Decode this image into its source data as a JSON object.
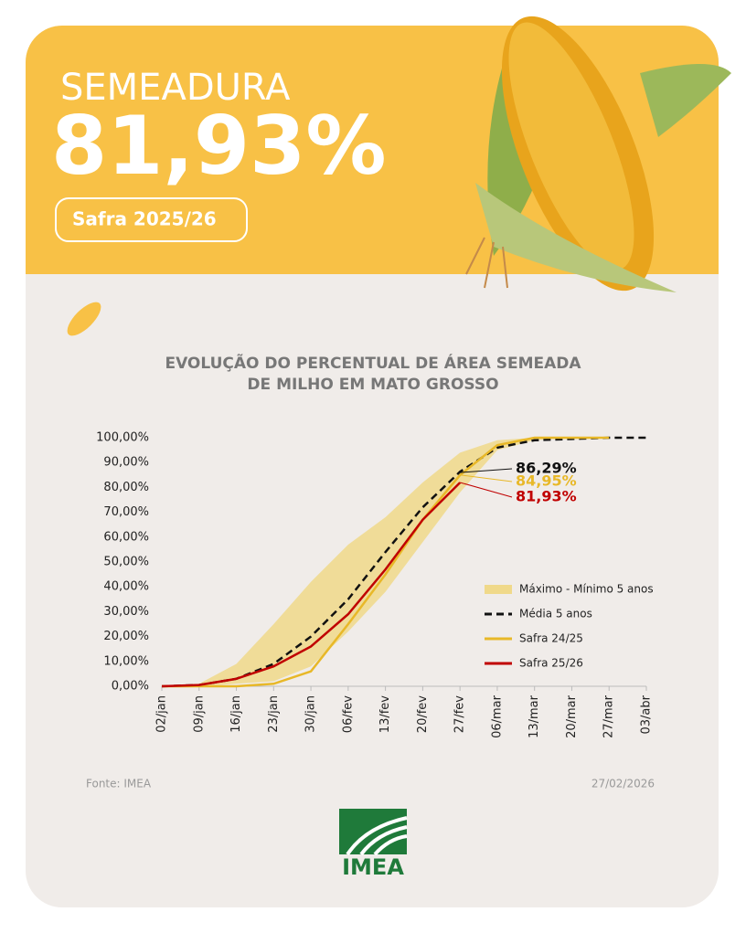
{
  "header": {
    "title": "SEMEADURA",
    "value": "81,93%",
    "badge": "Safra 2025/26"
  },
  "chart_data": {
    "type": "line",
    "title": [
      "EVOLUÇÃO DO PERCENTUAL DE ÁREA SEMEADA",
      "DE MILHO EM MATO GROSSO"
    ],
    "categories": [
      "02/jan",
      "09/jan",
      "16/jan",
      "23/jan",
      "30/jan",
      "06/fev",
      "13/fev",
      "20/fev",
      "27/fev",
      "06/mar",
      "13/mar",
      "20/mar",
      "27/mar",
      "03/abr"
    ],
    "ylim": [
      0,
      100
    ],
    "yticks": [
      {
        "value": 0,
        "label": "0,00%"
      },
      {
        "value": 10,
        "label": "10,00%"
      },
      {
        "value": 20,
        "label": "20,00%"
      },
      {
        "value": 30,
        "label": "30,00%"
      },
      {
        "value": 40,
        "label": "40,00%"
      },
      {
        "value": 50,
        "label": "50,00%"
      },
      {
        "value": 60,
        "label": "60,00%"
      },
      {
        "value": 70,
        "label": "70,00%"
      },
      {
        "value": 80,
        "label": "80,00%"
      },
      {
        "value": 90,
        "label": "90,00%"
      },
      {
        "value": 100,
        "label": "100,00%"
      }
    ],
    "band": {
      "name": "Máximo - Mínimo 5 anos",
      "color": "#f0d98a",
      "upper": [
        0,
        1,
        9,
        25,
        42,
        57,
        68,
        82,
        94,
        99,
        100,
        100,
        100,
        null
      ],
      "lower": [
        0,
        0,
        1,
        2,
        8,
        22,
        38,
        58,
        78,
        95,
        99,
        100,
        100,
        null
      ]
    },
    "series": [
      {
        "name": "Média 5 anos",
        "color": "#111111",
        "dash": true,
        "values": [
          0,
          0.5,
          3,
          9,
          20,
          35,
          54,
          72,
          86.29,
          96,
          99,
          99.5,
          100,
          100
        ]
      },
      {
        "name": "Safra 24/25",
        "color": "#e8b828",
        "values": [
          0,
          0,
          0,
          1,
          6,
          25,
          45,
          67,
          84.95,
          97,
          100,
          100,
          100,
          null
        ]
      },
      {
        "name": "Safra 25/26",
        "color": "#c00000",
        "values": [
          0,
          0.5,
          3,
          8,
          16,
          29,
          47,
          67,
          81.93,
          null,
          null,
          null,
          null,
          null
        ]
      }
    ],
    "annotations": [
      {
        "text": "86,29%",
        "color": "#111111"
      },
      {
        "text": "84,95%",
        "color": "#e8b828"
      },
      {
        "text": "81,93%",
        "color": "#c00000"
      }
    ]
  },
  "footer": {
    "source": "Fonte: IMEA",
    "date": "27/02/2026",
    "logo": "IMEA"
  }
}
